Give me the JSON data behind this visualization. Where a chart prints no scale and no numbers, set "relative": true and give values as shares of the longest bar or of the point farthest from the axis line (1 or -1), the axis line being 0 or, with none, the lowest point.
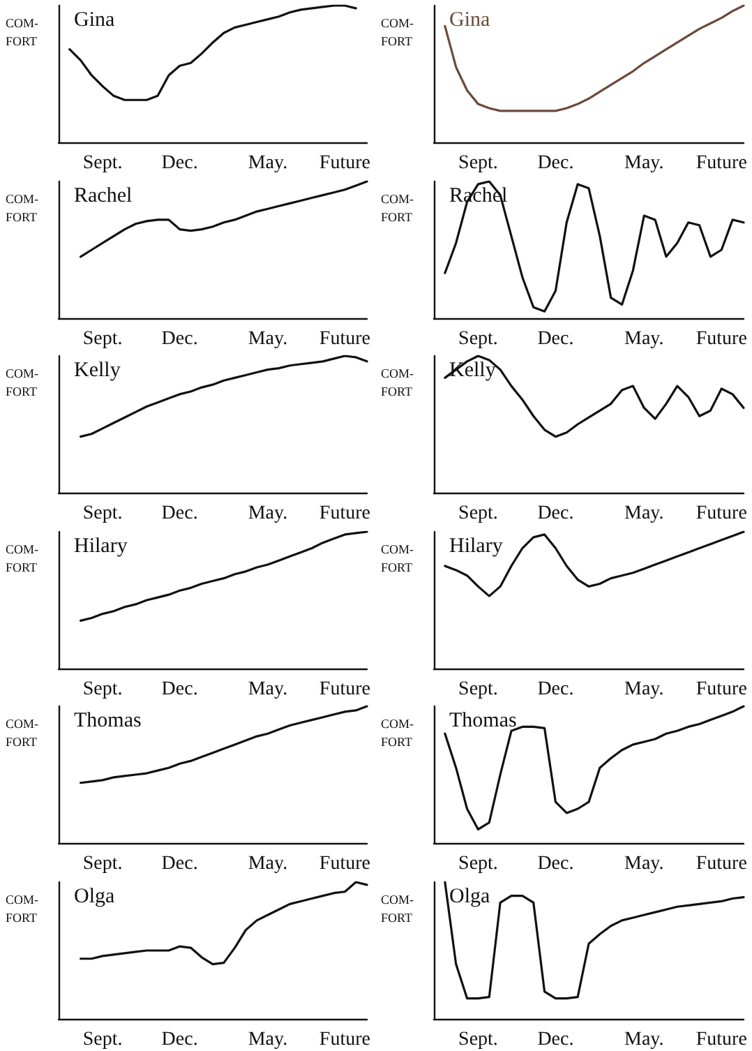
{
  "chart_data": [
    {
      "type": "line",
      "title": "Gina",
      "ylabel": "COM-\nFORT",
      "relative": true,
      "marker": "none",
      "categories": [
        null,
        null,
        null,
        null,
        "Sept.",
        null,
        null,
        null,
        null,
        null,
        null,
        "Dec.",
        null,
        null,
        null,
        null,
        null,
        null,
        null,
        "May.",
        null,
        null,
        null,
        null,
        null,
        null,
        "Future",
        null,
        null
      ],
      "series": [
        {
          "color": "#111111",
          "values": [
            null,
            0.68,
            0.6,
            0.49,
            0.41,
            0.34,
            0.31,
            0.31,
            0.31,
            0.34,
            0.49,
            0.56,
            0.58,
            0.65,
            0.73,
            0.8,
            0.84,
            0.86,
            0.88,
            0.9,
            0.92,
            0.95,
            0.97,
            0.98,
            0.99,
            1,
            1,
            0.98,
            null
          ]
        }
      ]
    },
    {
      "type": "line",
      "title": "Gina",
      "ylabel": "COM-\nFORT",
      "relative": true,
      "marker": "none",
      "categories": [
        null,
        null,
        null,
        null,
        "Sept.",
        null,
        null,
        null,
        null,
        null,
        null,
        "Dec.",
        null,
        null,
        null,
        null,
        null,
        null,
        null,
        "May.",
        null,
        null,
        null,
        null,
        null,
        null,
        "Future",
        null,
        null
      ],
      "series": [
        {
          "color": "#6b4a3a",
          "values": [
            null,
            0.85,
            0.55,
            0.38,
            0.28,
            0.25,
            0.23,
            0.23,
            0.23,
            0.23,
            0.23,
            0.23,
            0.25,
            0.28,
            0.32,
            0.37,
            0.42,
            0.47,
            0.52,
            0.58,
            0.63,
            0.68,
            0.73,
            0.78,
            0.83,
            0.87,
            0.91,
            0.96,
            1
          ]
        }
      ]
    },
    {
      "type": "line",
      "title": "Rachel",
      "ylabel": "COM-\nFORT",
      "relative": true,
      "marker": "none",
      "categories": [
        null,
        null,
        null,
        null,
        "Sept.",
        null,
        null,
        null,
        null,
        null,
        null,
        "Dec.",
        null,
        null,
        null,
        null,
        null,
        null,
        null,
        "May.",
        null,
        null,
        null,
        null,
        null,
        null,
        "Future",
        null,
        null
      ],
      "series": [
        {
          "color": "#111111",
          "values": [
            null,
            null,
            0.45,
            0.5,
            0.55,
            0.6,
            0.65,
            0.69,
            0.71,
            0.72,
            0.72,
            0.65,
            0.64,
            0.65,
            0.67,
            0.7,
            0.72,
            0.75,
            0.78,
            0.8,
            0.82,
            0.84,
            0.86,
            0.88,
            0.9,
            0.92,
            0.94,
            0.97,
            1
          ]
        }
      ]
    },
    {
      "type": "line",
      "title": "Rachel",
      "ylabel": "COM-\nFORT",
      "relative": true,
      "marker": "none",
      "categories": [
        null,
        null,
        null,
        null,
        "Sept.",
        null,
        null,
        null,
        null,
        null,
        null,
        "Dec.",
        null,
        null,
        null,
        null,
        null,
        null,
        null,
        "May.",
        null,
        null,
        null,
        null,
        null,
        null,
        "Future",
        null,
        null
      ],
      "series": [
        {
          "color": "#111111",
          "values": [
            null,
            0.33,
            0.55,
            0.85,
            0.98,
            1,
            0.9,
            0.6,
            0.3,
            0.08,
            0.05,
            0.2,
            0.7,
            0.98,
            0.95,
            0.6,
            0.15,
            0.1,
            0.35,
            0.75,
            0.72,
            0.45,
            0.55,
            0.7,
            0.68,
            0.45,
            0.5,
            0.72,
            0.7
          ]
        }
      ]
    },
    {
      "type": "line",
      "title": "Kelly",
      "ylabel": "COM-\nFORT",
      "relative": true,
      "marker": "none",
      "categories": [
        null,
        null,
        null,
        null,
        "Sept.",
        null,
        null,
        null,
        null,
        null,
        null,
        "Dec.",
        null,
        null,
        null,
        null,
        null,
        null,
        null,
        "May.",
        null,
        null,
        null,
        null,
        null,
        null,
        "Future",
        null,
        null
      ],
      "series": [
        {
          "color": "#111111",
          "values": [
            null,
            null,
            0.41,
            0.43,
            0.47,
            0.51,
            0.55,
            0.59,
            0.63,
            0.66,
            0.69,
            0.72,
            0.74,
            0.77,
            0.79,
            0.82,
            0.84,
            0.86,
            0.88,
            0.9,
            0.91,
            0.93,
            0.94,
            0.95,
            0.96,
            0.98,
            1,
            0.99,
            0.96
          ]
        }
      ]
    },
    {
      "type": "line",
      "title": "Kelly",
      "ylabel": "COM-\nFORT",
      "relative": true,
      "marker": "none",
      "categories": [
        null,
        null,
        null,
        null,
        "Sept.",
        null,
        null,
        null,
        null,
        null,
        null,
        "Dec.",
        null,
        null,
        null,
        null,
        null,
        null,
        null,
        "May.",
        null,
        null,
        null,
        null,
        null,
        null,
        "Future",
        null,
        null
      ],
      "series": [
        {
          "color": "#111111",
          "values": [
            null,
            0.84,
            0.9,
            0.96,
            1,
            0.97,
            0.9,
            0.78,
            0.68,
            0.56,
            0.46,
            0.41,
            0.44,
            0.5,
            0.55,
            0.6,
            0.65,
            0.75,
            0.78,
            0.62,
            0.54,
            0.65,
            0.78,
            0.7,
            0.56,
            0.6,
            0.76,
            0.72,
            0.62
          ]
        }
      ]
    },
    {
      "type": "line",
      "title": "Hilary",
      "ylabel": "COM-\nFORT",
      "relative": true,
      "marker": "none",
      "categories": [
        null,
        null,
        null,
        null,
        "Sept.",
        null,
        null,
        null,
        null,
        null,
        null,
        "Dec.",
        null,
        null,
        null,
        null,
        null,
        null,
        null,
        "May.",
        null,
        null,
        null,
        null,
        null,
        null,
        "Future",
        null,
        null
      ],
      "series": [
        {
          "color": "#111111",
          "values": [
            null,
            null,
            0.35,
            0.37,
            0.4,
            0.42,
            0.45,
            0.47,
            0.5,
            0.52,
            0.54,
            0.57,
            0.59,
            0.62,
            0.64,
            0.66,
            0.69,
            0.71,
            0.74,
            0.76,
            0.79,
            0.82,
            0.85,
            0.88,
            0.92,
            0.95,
            0.98,
            0.99,
            1
          ]
        }
      ]
    },
    {
      "type": "line",
      "title": "Hilary",
      "ylabel": "COM-\nFORT",
      "relative": true,
      "marker": "none",
      "categories": [
        null,
        null,
        null,
        null,
        "Sept.",
        null,
        null,
        null,
        null,
        null,
        null,
        "Dec.",
        null,
        null,
        null,
        null,
        null,
        null,
        null,
        "May.",
        null,
        null,
        null,
        null,
        null,
        null,
        "Future",
        null,
        null
      ],
      "series": [
        {
          "color": "#111111",
          "values": [
            null,
            0.75,
            0.72,
            0.68,
            0.6,
            0.53,
            0.6,
            0.75,
            0.88,
            0.96,
            0.98,
            0.88,
            0.75,
            0.65,
            0.6,
            0.62,
            0.66,
            0.68,
            0.7,
            0.73,
            0.76,
            0.79,
            0.82,
            0.85,
            0.88,
            0.91,
            0.94,
            0.97,
            1
          ]
        }
      ]
    },
    {
      "type": "line",
      "title": "Thomas",
      "ylabel": "COM-\nFORT",
      "relative": true,
      "marker": "none",
      "categories": [
        null,
        null,
        null,
        null,
        "Sept.",
        null,
        null,
        null,
        null,
        null,
        null,
        "Dec.",
        null,
        null,
        null,
        null,
        null,
        null,
        null,
        "May.",
        null,
        null,
        null,
        null,
        null,
        null,
        "Future",
        null,
        null
      ],
      "series": [
        {
          "color": "#111111",
          "values": [
            null,
            null,
            0.44,
            0.45,
            0.46,
            0.48,
            0.49,
            0.5,
            0.51,
            0.53,
            0.55,
            0.58,
            0.6,
            0.63,
            0.66,
            0.69,
            0.72,
            0.75,
            0.78,
            0.8,
            0.83,
            0.86,
            0.88,
            0.9,
            0.92,
            0.94,
            0.96,
            0.97,
            1
          ]
        }
      ]
    },
    {
      "type": "line",
      "title": "Thomas",
      "ylabel": "COM-\nFORT",
      "relative": true,
      "marker": "none",
      "categories": [
        null,
        null,
        null,
        null,
        "Sept.",
        null,
        null,
        null,
        null,
        null,
        null,
        "Dec.",
        null,
        null,
        null,
        null,
        null,
        null,
        null,
        "May.",
        null,
        null,
        null,
        null,
        null,
        null,
        "Future",
        null,
        null
      ],
      "series": [
        {
          "color": "#111111",
          "values": [
            null,
            0.8,
            0.55,
            0.25,
            0.1,
            0.15,
            0.5,
            0.82,
            0.85,
            0.85,
            0.84,
            0.3,
            0.22,
            0.25,
            0.3,
            0.55,
            0.62,
            0.68,
            0.72,
            0.74,
            0.76,
            0.8,
            0.82,
            0.85,
            0.87,
            0.9,
            0.93,
            0.96,
            1
          ]
        }
      ]
    },
    {
      "type": "line",
      "title": "Olga",
      "ylabel": "COM-\nFORT",
      "relative": true,
      "marker": "none",
      "categories": [
        null,
        null,
        null,
        null,
        "Sept.",
        null,
        null,
        null,
        null,
        null,
        null,
        "Dec.",
        null,
        null,
        null,
        null,
        null,
        null,
        null,
        "May.",
        null,
        null,
        null,
        null,
        null,
        null,
        "Future",
        null,
        null
      ],
      "series": [
        {
          "color": "#111111",
          "values": [
            null,
            null,
            0.44,
            0.44,
            0.46,
            0.47,
            0.48,
            0.49,
            0.5,
            0.5,
            0.5,
            0.53,
            0.52,
            0.45,
            0.4,
            0.41,
            0.52,
            0.65,
            0.72,
            0.76,
            0.8,
            0.84,
            0.86,
            0.88,
            0.9,
            0.92,
            0.93,
            1,
            0.98
          ]
        }
      ]
    },
    {
      "type": "line",
      "title": "Olga",
      "ylabel": "COM-\nFORT",
      "relative": true,
      "marker": "none",
      "categories": [
        null,
        null,
        null,
        null,
        "Sept.",
        null,
        null,
        null,
        null,
        null,
        null,
        "Dec.",
        null,
        null,
        null,
        null,
        null,
        null,
        null,
        "May.",
        null,
        null,
        null,
        null,
        null,
        null,
        "Future",
        null,
        null
      ],
      "series": [
        {
          "color": "#111111",
          "values": [
            null,
            1,
            0.4,
            0.15,
            0.15,
            0.16,
            0.85,
            0.9,
            0.9,
            0.85,
            0.2,
            0.15,
            0.15,
            0.16,
            0.55,
            0.62,
            0.68,
            0.72,
            0.74,
            0.76,
            0.78,
            0.8,
            0.82,
            0.83,
            0.84,
            0.85,
            0.86,
            0.88,
            0.89
          ]
        }
      ]
    }
  ]
}
